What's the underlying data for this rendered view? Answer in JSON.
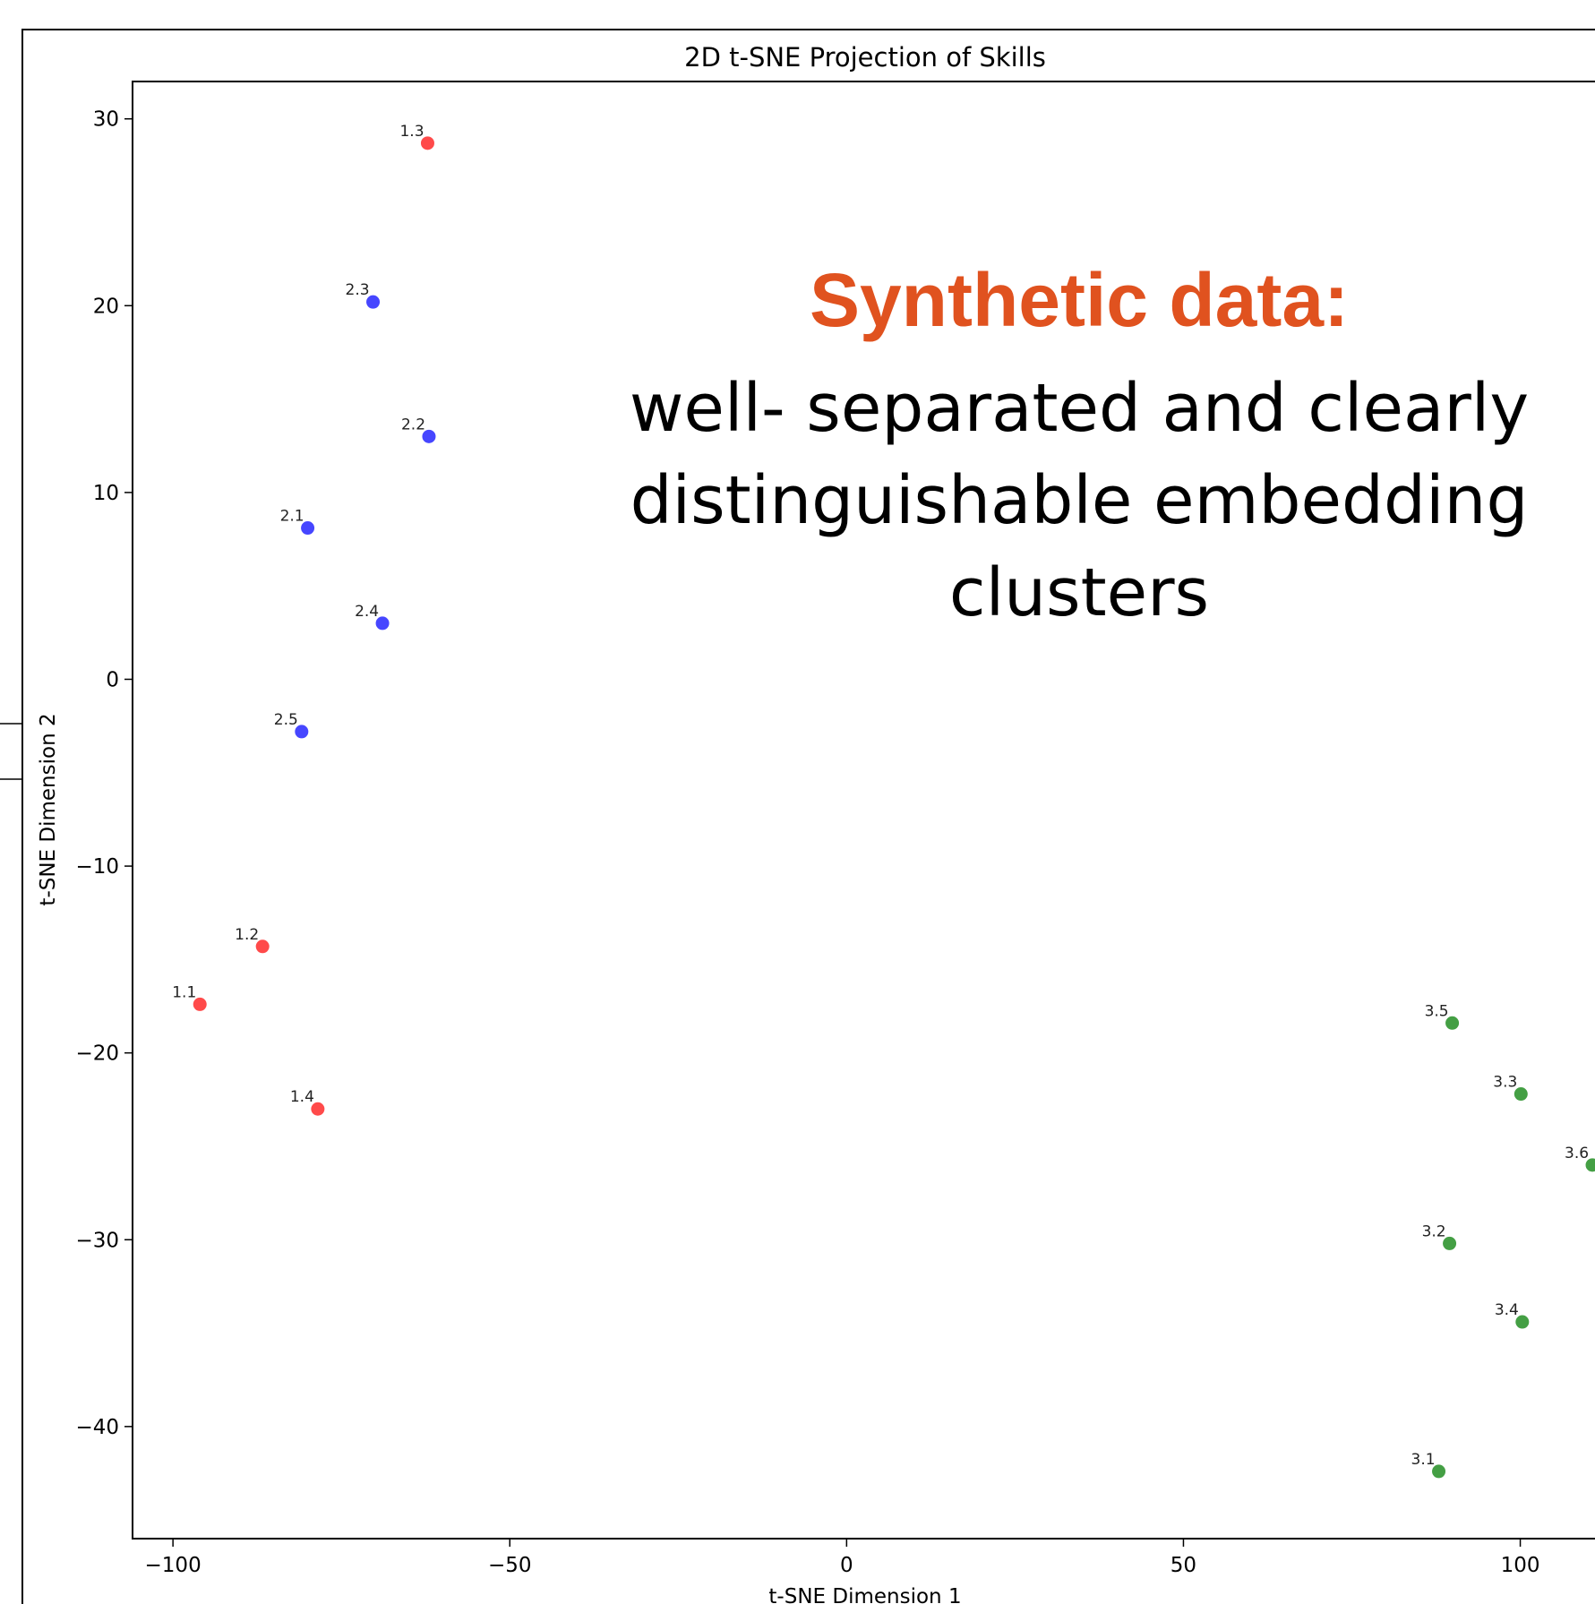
{
  "chart_data": {
    "type": "scatter",
    "title": "2D t-SNE Projection of Skills",
    "xlabel": "t-SNE Dimension 1",
    "ylabel": "t-SNE Dimension 2",
    "xlim": [
      -106,
      120
    ],
    "ylim": [
      -46,
      32
    ],
    "xticks": [
      -100,
      -50,
      0,
      50,
      100
    ],
    "yticks": [
      30,
      20,
      10,
      0,
      -10,
      -20,
      -30,
      -40
    ],
    "xtick_labels": [
      "−100",
      "−50",
      "0",
      "50",
      "100"
    ],
    "ytick_labels": [
      "30",
      "20",
      "10",
      "0",
      "−10",
      "−20",
      "−30",
      "−40"
    ],
    "grid": false,
    "series": [
      {
        "color": "#ff4040",
        "points": [
          {
            "label": "1.1",
            "x": -96,
            "y": -17.4
          },
          {
            "label": "1.2",
            "x": -86.7,
            "y": -14.3
          },
          {
            "label": "1.3",
            "x": -62.2,
            "y": 28.7
          },
          {
            "label": "1.4",
            "x": -78.5,
            "y": -23
          }
        ]
      },
      {
        "color": "#3c3cff",
        "points": [
          {
            "label": "2.1",
            "x": -80,
            "y": 8.1
          },
          {
            "label": "2.2",
            "x": -62,
            "y": 13
          },
          {
            "label": "2.3",
            "x": -70.3,
            "y": 20.2
          },
          {
            "label": "2.4",
            "x": -68.9,
            "y": 3
          },
          {
            "label": "2.5",
            "x": -80.9,
            "y": -2.8
          }
        ]
      },
      {
        "color": "#3a9a3a",
        "points": [
          {
            "label": "3.1",
            "x": 87.9,
            "y": -42.4
          },
          {
            "label": "3.2",
            "x": 89.5,
            "y": -30.2
          },
          {
            "label": "3.3",
            "x": 100.1,
            "y": -22.2
          },
          {
            "label": "3.4",
            "x": 100.3,
            "y": -34.4
          },
          {
            "label": "3.5",
            "x": 89.9,
            "y": -18.4
          },
          {
            "label": "3.6",
            "x": 110.7,
            "y": -26
          }
        ]
      }
    ]
  },
  "overlay": {
    "title": "Synthetic data:",
    "title_color": "#e0521f",
    "body": "well- separated and clearly distinguishable embedding clusters"
  }
}
